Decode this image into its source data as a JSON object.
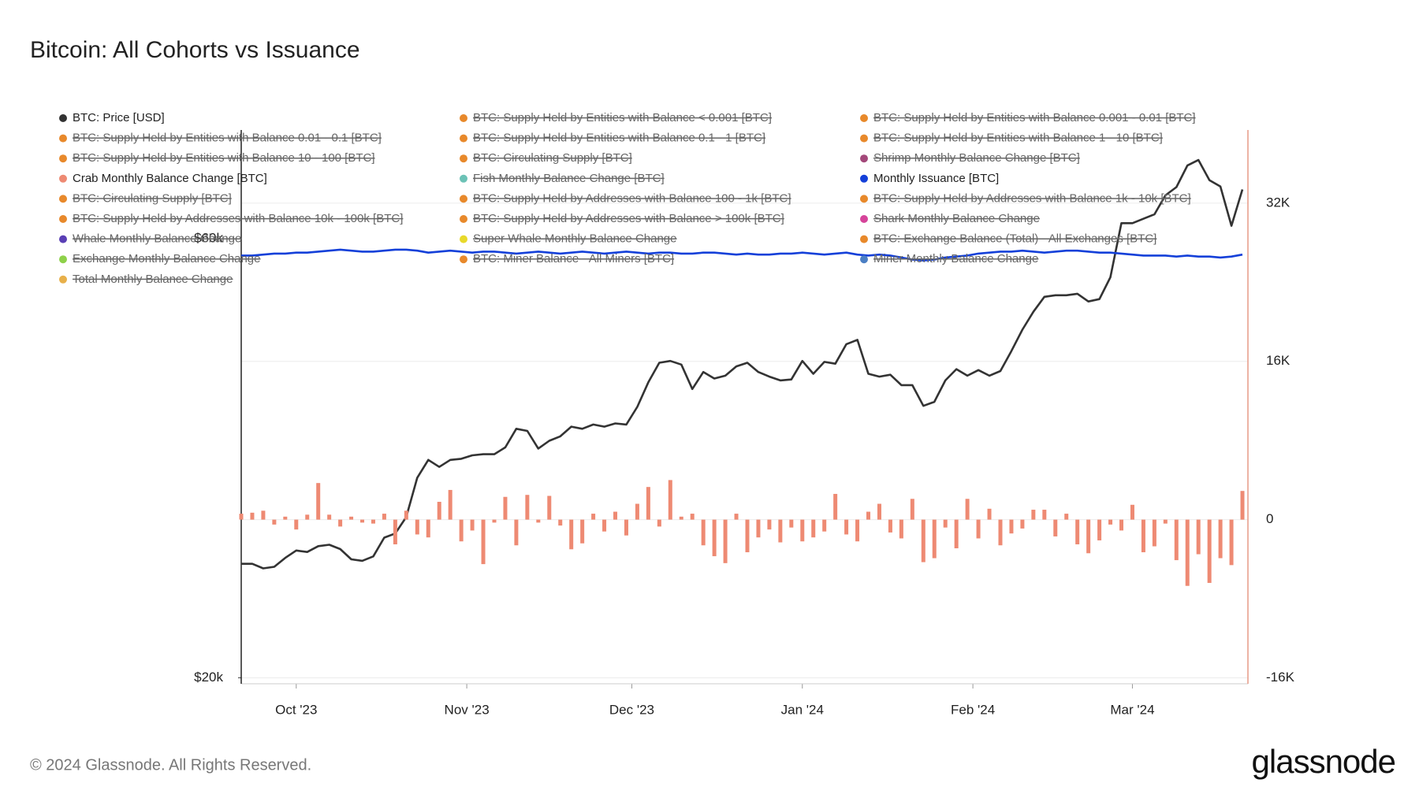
{
  "chart_data": {
    "type": "combo",
    "title": "Bitcoin: All Cohorts vs Issuance",
    "footer": "© 2024 Glassnode. All Rights Reserved.",
    "brand": "glassnode",
    "x": [
      0,
      2,
      4,
      6,
      8,
      10,
      12,
      14,
      16,
      18,
      20,
      22,
      24,
      26,
      28,
      30,
      32,
      34,
      36,
      38,
      40,
      42,
      44,
      46,
      48,
      50,
      52,
      54,
      56,
      58,
      60,
      62,
      64,
      66,
      68,
      70,
      72,
      74,
      76,
      78,
      80,
      82,
      84,
      86,
      88,
      90,
      92,
      94,
      96,
      98,
      100,
      102,
      104,
      106,
      108,
      110,
      112,
      114,
      116,
      118,
      120,
      122,
      124,
      126,
      128,
      130,
      132,
      134,
      136,
      138,
      140,
      142,
      144,
      146,
      148,
      150,
      152,
      154,
      156,
      158,
      160,
      162,
      164,
      166,
      168,
      170,
      172,
      174,
      176,
      178,
      180,
      182
    ],
    "xlim": [
      0,
      183
    ],
    "xticks": [
      {
        "value": 10,
        "label": "Oct '23"
      },
      {
        "value": 41,
        "label": "Nov '23"
      },
      {
        "value": 71,
        "label": "Dec '23"
      },
      {
        "value": 102,
        "label": "Jan '24"
      },
      {
        "value": 133,
        "label": "Feb '24"
      },
      {
        "value": 162,
        "label": "Mar '24"
      }
    ],
    "ylim": [
      19700,
      78800
    ],
    "log": true,
    "yticks": [
      {
        "value": 20000,
        "label": "$20k"
      },
      {
        "value": 60000,
        "label": "$60k"
      }
    ],
    "y2lim": [
      -16600,
      39400
    ],
    "y2ticks": [
      {
        "value": -16000,
        "label": "-16K"
      },
      0,
      {
        "value": 16000,
        "label": "16K"
      },
      {
        "value": 32000,
        "label": "32K"
      }
    ],
    "grid": true,
    "series": [
      {
        "name": "BTC: Price [USD]",
        "color": "#333333",
        "type": "line",
        "axis": "y",
        "values": [
          26600,
          26600,
          26300,
          26400,
          27000,
          27500,
          27400,
          27800,
          27900,
          27600,
          26900,
          26800,
          27100,
          28400,
          28700,
          29900,
          33000,
          34500,
          33900,
          34500,
          34600,
          34900,
          35000,
          35000,
          35600,
          37300,
          37100,
          35500,
          36200,
          36600,
          37500,
          37300,
          37700,
          37500,
          37800,
          37700,
          39400,
          41900,
          44000,
          44200,
          43800,
          41200,
          43000,
          42300,
          42600,
          43600,
          44000,
          43000,
          42500,
          42100,
          42200,
          44200,
          42800,
          44100,
          43900,
          46100,
          46600,
          42800,
          42500,
          42700,
          41600,
          41600,
          39500,
          39900,
          42100,
          43300,
          42600,
          43200,
          42600,
          43100,
          45300,
          47800,
          50000,
          51900,
          52100,
          52100,
          52300,
          51300,
          51600,
          54500,
          62400,
          62400,
          63100,
          63800,
          66900,
          68300,
          72100,
          73100,
          69500,
          68400,
          62000,
          67900
        ]
      },
      {
        "name": "BTC: Supply Held by Entities with Balance < 0.001 [BTC]",
        "color": "#e8892b",
        "hidden": true
      },
      {
        "name": "BTC: Supply Held by Entities with Balance 0.001 - 0.01 [BTC]",
        "color": "#e8892b",
        "hidden": true
      },
      {
        "name": "BTC: Supply Held by Entities with Balance 0.01 - 0.1 [BTC]",
        "color": "#e8892b",
        "hidden": true
      },
      {
        "name": "BTC: Supply Held by Entities with Balance 0.1 - 1 [BTC]",
        "color": "#e8892b",
        "hidden": true
      },
      {
        "name": "BTC: Supply Held by Entities with Balance 1 - 10 [BTC]",
        "color": "#e8892b",
        "hidden": true
      },
      {
        "name": "BTC: Supply Held by Entities with Balance 10 - 100 [BTC]",
        "color": "#e8892b",
        "hidden": true
      },
      {
        "name": "BTC: Circulating Supply [BTC]",
        "color": "#e8892b",
        "hidden": true
      },
      {
        "name": "Shrimp Monthly Balance Change [BTC]",
        "color": "#a3487a",
        "hidden": true
      },
      {
        "name": "Crab Monthly Balance Change [BTC]",
        "color": "#ee8a73",
        "type": "bar",
        "axis": "y2",
        "values": [
          600,
          700,
          900,
          -500,
          300,
          -1000,
          500,
          3700,
          500,
          -700,
          300,
          -300,
          -400,
          600,
          -2500,
          900,
          -1500,
          -1800,
          1800,
          3000,
          -2200,
          -1100,
          -4500,
          -300,
          2300,
          -2600,
          2500,
          -300,
          2400,
          -600,
          -3000,
          -2400,
          600,
          -1200,
          800,
          -1600,
          1600,
          3300,
          -700,
          4000,
          300,
          600,
          -2600,
          -3700,
          -4400,
          600,
          -3300,
          -1800,
          -1000,
          -2300,
          -800,
          -2200,
          -1800,
          -1200,
          2600,
          -1500,
          -2200,
          800,
          1600,
          -1300,
          -1900,
          2100,
          -4300,
          -3900,
          -800,
          -2900,
          2100,
          -1900,
          1100,
          -2600,
          -1400,
          -900,
          1000,
          1000,
          -1700,
          600,
          -2500,
          -3400,
          -2100,
          -500,
          -1100,
          1500,
          -3300,
          -2700,
          -400,
          -4100,
          -6700,
          -3500,
          -6400,
          -3900,
          -4600,
          2900
        ]
      },
      {
        "name": "Fish Monthly Balance Change [BTC]",
        "color": "#6cc2b6",
        "hidden": true
      },
      {
        "name": "Monthly Issuance [BTC]",
        "color": "#1440d9",
        "type": "line",
        "axis": "y2",
        "values": [
          26700,
          26700,
          26800,
          26900,
          26900,
          27000,
          27000,
          27100,
          27200,
          27300,
          27200,
          27100,
          27100,
          27200,
          27300,
          27300,
          27200,
          27000,
          27100,
          27200,
          27100,
          27000,
          27100,
          27100,
          27000,
          26900,
          27000,
          27100,
          27000,
          26900,
          27000,
          27100,
          27000,
          26900,
          27000,
          27100,
          27000,
          26900,
          27000,
          27000,
          26900,
          26900,
          27000,
          27000,
          26900,
          26800,
          26900,
          26800,
          26800,
          26900,
          26900,
          27000,
          26900,
          26800,
          26900,
          27000,
          26800,
          26700,
          26800,
          26700,
          26500,
          26300,
          26200,
          26300,
          26500,
          26600,
          26700,
          26900,
          27000,
          27100,
          27100,
          27200,
          27100,
          27000,
          27100,
          27200,
          27200,
          27100,
          27000,
          27000,
          26900,
          26800,
          26700,
          26700,
          26700,
          26600,
          26700,
          26600,
          26600,
          26500,
          26600,
          26800
        ]
      },
      {
        "name": "BTC: Circulating Supply [BTC]",
        "color": "#e8892b",
        "hidden": true
      },
      {
        "name": "BTC: Supply Held by Addresses with Balance 100 - 1k [BTC]",
        "color": "#e8892b",
        "hidden": true
      },
      {
        "name": "BTC: Supply Held by Addresses with Balance 1k - 10k [BTC]",
        "color": "#e8892b",
        "hidden": true
      },
      {
        "name": "BTC: Supply Held by Addresses with Balance 10k - 100k [BTC]",
        "color": "#e8892b",
        "hidden": true
      },
      {
        "name": "BTC: Supply Held by Addresses with Balance > 100k [BTC]",
        "color": "#e8892b",
        "hidden": true
      },
      {
        "name": "Shark Monthly Balance Change",
        "color": "#d6449a",
        "hidden": true
      },
      {
        "name": "Whale Monthly Balance Change",
        "color": "#5a3fb5",
        "hidden": true
      },
      {
        "name": "Super Whale Monthly Balance Change",
        "color": "#e8d92b",
        "hidden": true
      },
      {
        "name": "BTC: Exchange Balance (Total) - All Exchanges [BTC]",
        "color": "#e8892b",
        "hidden": true
      },
      {
        "name": "Exchange Monthly Balance Change",
        "color": "#8ed14a",
        "hidden": true
      },
      {
        "name": "BTC: Miner Balance - All Miners [BTC]",
        "color": "#e8892b",
        "hidden": true
      },
      {
        "name": "Miner Monthly Balance Change",
        "color": "#4c7fc4",
        "hidden": true
      },
      {
        "name": "Total Monthly Balance Change",
        "color": "#e8b04a",
        "hidden": true
      }
    ]
  }
}
